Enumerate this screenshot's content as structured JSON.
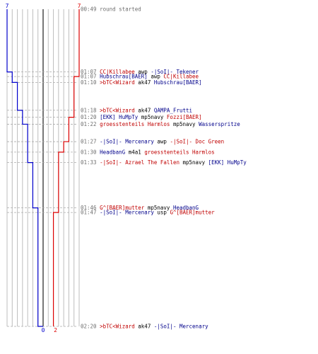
{
  "colors": {
    "blue_team": "#0000cc",
    "red_team": "#dd0000",
    "grid": "#bdbdbd",
    "center": "#555555",
    "time": "#6e6e6e",
    "weapon": "#000000"
  },
  "chart_data": {
    "type": "line",
    "title": "",
    "series": [
      {
        "name": "",
        "color": "blue",
        "start": 7,
        "final": 0
      },
      {
        "name": "",
        "color": "red",
        "start": 7,
        "final": 2
      }
    ],
    "start_labels": {
      "blue": "7",
      "red": "7"
    },
    "end_labels": {
      "blue": "0",
      "red": "2"
    },
    "events": [
      {
        "time": "00:49",
        "message": "round started",
        "type": "start"
      },
      {
        "time": "01:07",
        "killer": "CC|Killabee",
        "killer_team": "red",
        "weapon": "awp",
        "victim": "-|SoI|- Tekener",
        "victim_team": "blue"
      },
      {
        "time": "01:07",
        "killer": "Hubschrau[BAER]",
        "killer_team": "blue",
        "weapon": "awp",
        "victim": "CC|Killabee",
        "victim_team": "red"
      },
      {
        "time": "01:10",
        "killer": ">bTC<Wizard",
        "killer_team": "red",
        "weapon": "ak47",
        "victim": "Hubschrau[BAER]",
        "victim_team": "blue"
      },
      {
        "time": "01:18",
        "killer": ">bTC<Wizard",
        "killer_team": "red",
        "weapon": "ak47",
        "victim": "QAMPA_Frutti",
        "victim_team": "blue"
      },
      {
        "time": "01:20",
        "killer": "[EKK] HuMpTy",
        "killer_team": "blue",
        "weapon": "mp5navy",
        "victim": "Fozzi[BAER]",
        "victim_team": "red"
      },
      {
        "time": "01:22",
        "killer": "groesstenteils Harmlos",
        "killer_team": "red",
        "weapon": "mp5navy",
        "victim": "Wasserspritze",
        "victim_team": "blue"
      },
      {
        "time": "01:27",
        "killer": "-|SoI|- Mercenary",
        "killer_team": "blue",
        "weapon": "awp",
        "victim": "-|SoI|- Doc Green",
        "victim_team": "red"
      },
      {
        "time": "01:30",
        "killer": "HeadbanG",
        "killer_team": "blue",
        "weapon": "m4a1",
        "victim": "groesstenteils Harmlos",
        "victim_team": "red"
      },
      {
        "time": "01:33",
        "killer": "-|SoI|- Azrael The Fallen",
        "killer_team": "red",
        "weapon": "mp5navy",
        "victim": "[EKK] HuMpTy",
        "victim_team": "blue"
      },
      {
        "time": "01:46",
        "killer": "G^[BAER]mutter",
        "killer_team": "red",
        "weapon": "mp5navy",
        "victim": "HeadbanG",
        "victim_team": "blue"
      },
      {
        "time": "01:47",
        "killer": "-|SoI|- Mercenary",
        "killer_team": "blue",
        "weapon": "usp",
        "victim": "G^[BAER]mutter",
        "victim_team": "red"
      },
      {
        "time": "02:20",
        "killer": ">bTC<Wizard",
        "killer_team": "red",
        "weapon": "ak47",
        "victim": "-|SoI|- Mercenary",
        "victim_team": "blue"
      }
    ]
  }
}
